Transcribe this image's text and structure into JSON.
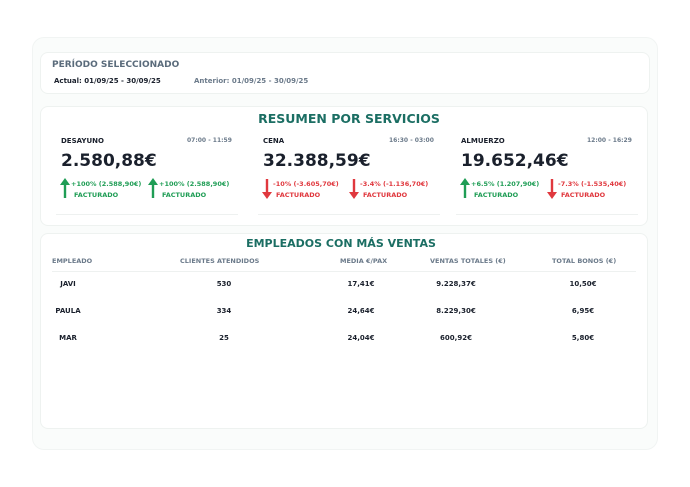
{
  "period": {
    "title": "PERÍODO SELECCIONADO",
    "actual": "Actual: 01/09/25 - 30/09/25",
    "previous": "Anterior: 01/09/25 - 30/09/25"
  },
  "services": {
    "title": "RESUMEN POR SERVICIOS",
    "items": [
      {
        "name": "DESAYUNO",
        "time": "07:00 - 11:59",
        "amount": "2.580,88€",
        "changes": [
          {
            "text": "+100% (2.588,90€)",
            "label": "FACTURADO"
          },
          {
            "text": "+100% (2.588,90€)",
            "label": "FACTURADO"
          }
        ]
      },
      {
        "name": "CENA",
        "time": "16:30 - 03:00",
        "amount": "32.388,59€",
        "changes": [
          {
            "text": "-10% (-3.605,70€)",
            "label": "FACTURADO"
          },
          {
            "text": "-3.4% (-1.136,70€)",
            "label": "FACTURADO"
          }
        ]
      },
      {
        "name": "ALMUERZO",
        "time": "12:00 - 16:29",
        "amount": "19.652,46€",
        "changes": [
          {
            "text": "+6.5% (1.207,90€)",
            "label": "FACTURADO"
          },
          {
            "text": "-7.3% (-1.535,40€)",
            "label": "FACTURADO"
          }
        ]
      }
    ]
  },
  "employees": {
    "title": "EMPLEADOS CON MÁS VENTAS",
    "headers": [
      "EMPLEADO",
      "CLIENTES ATENDIDOS",
      "MEDIA €/PAX",
      "VENTAS TOTALES (€)",
      "TOTAL BONOS (€)"
    ],
    "rows": [
      [
        "JAVI",
        "530",
        "17,41€",
        "9.228,37€",
        "10,50€"
      ],
      [
        "PAULA",
        "334",
        "24,64€",
        "8.229,30€",
        "6,95€"
      ],
      [
        "MAR",
        "25",
        "24,04€",
        "600,92€",
        "5,80€"
      ]
    ]
  }
}
